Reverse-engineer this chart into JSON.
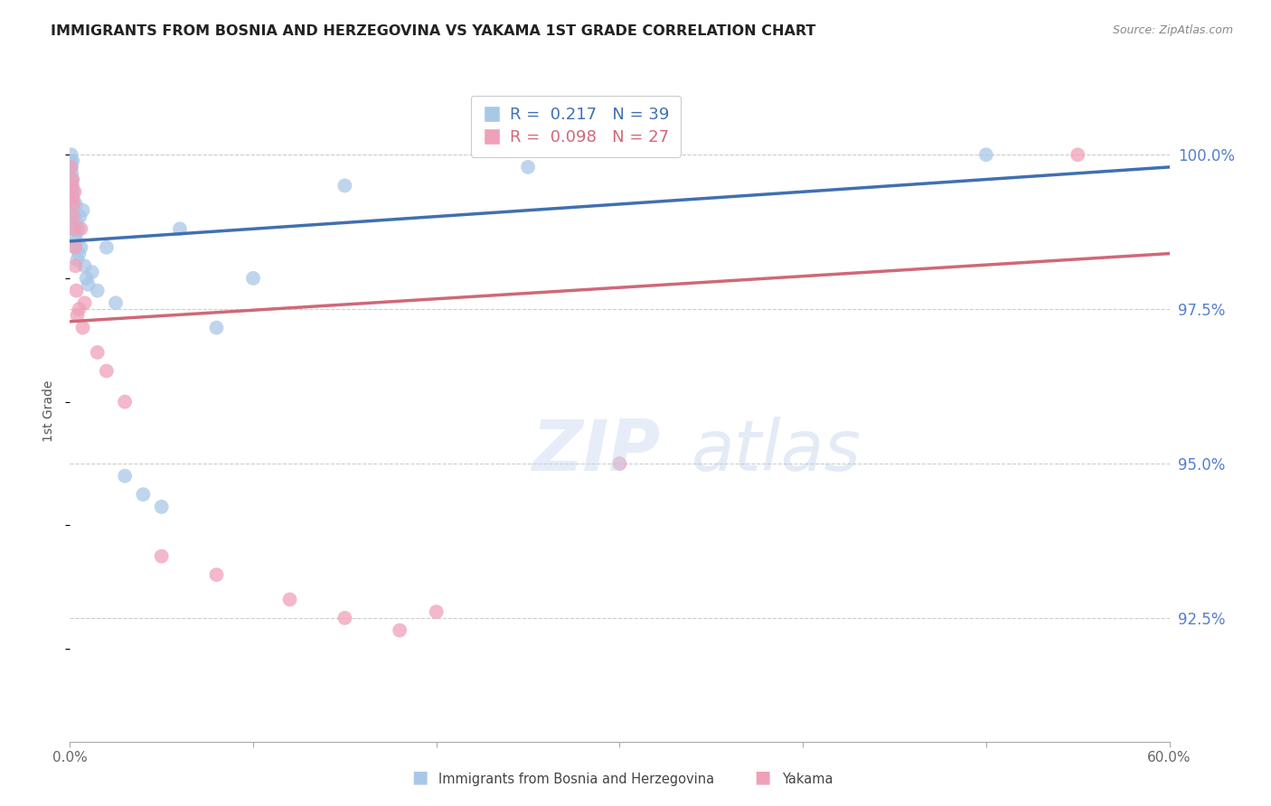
{
  "title": "IMMIGRANTS FROM BOSNIA AND HERZEGOVINA VS YAKAMA 1ST GRADE CORRELATION CHART",
  "source": "Source: ZipAtlas.com",
  "ylabel": "1st Grade",
  "right_yticks": [
    92.5,
    95.0,
    97.5,
    100.0
  ],
  "xlim": [
    0.0,
    60.0
  ],
  "ylim": [
    90.5,
    101.2
  ],
  "blue_R": 0.217,
  "blue_N": 39,
  "pink_R": 0.098,
  "pink_N": 27,
  "blue_color": "#a8c8e8",
  "pink_color": "#f0a0b8",
  "blue_line_color": "#4070b0",
  "pink_line_color": "#d06878",
  "legend_blue_label": "Immigrants from Bosnia and Herzegovina",
  "legend_pink_label": "Yakama",
  "blue_x": [
    0.05,
    0.07,
    0.08,
    0.1,
    0.12,
    0.13,
    0.15,
    0.17,
    0.18,
    0.2,
    0.22,
    0.25,
    0.28,
    0.3,
    0.32,
    0.35,
    0.38,
    0.4,
    0.45,
    0.5,
    0.55,
    0.6,
    0.7,
    0.8,
    0.9,
    1.0,
    1.2,
    1.5,
    2.0,
    2.5,
    3.0,
    4.0,
    5.0,
    6.0,
    8.0,
    10.0,
    15.0,
    25.0,
    50.0
  ],
  "blue_y": [
    99.9,
    100.0,
    99.8,
    99.7,
    99.6,
    99.5,
    99.9,
    99.3,
    99.4,
    99.1,
    98.8,
    99.0,
    98.7,
    98.5,
    99.2,
    98.9,
    98.6,
    98.3,
    98.8,
    98.4,
    99.0,
    98.5,
    99.1,
    98.2,
    98.0,
    97.9,
    98.1,
    97.8,
    98.5,
    97.6,
    94.8,
    94.5,
    94.3,
    98.8,
    97.2,
    98.0,
    99.5,
    99.8,
    100.0
  ],
  "pink_x": [
    0.05,
    0.1,
    0.12,
    0.15,
    0.18,
    0.2,
    0.22,
    0.25,
    0.28,
    0.3,
    0.35,
    0.4,
    0.5,
    0.6,
    0.7,
    0.8,
    1.5,
    2.0,
    3.0,
    5.0,
    8.0,
    12.0,
    15.0,
    18.0,
    20.0,
    30.0,
    55.0
  ],
  "pink_y": [
    99.8,
    99.5,
    99.3,
    99.6,
    99.0,
    99.2,
    98.8,
    99.4,
    98.5,
    98.2,
    97.8,
    97.4,
    97.5,
    98.8,
    97.2,
    97.6,
    96.8,
    96.5,
    96.0,
    93.5,
    93.2,
    92.8,
    92.5,
    92.3,
    92.6,
    95.0,
    100.0
  ],
  "blue_trend": [
    98.6,
    99.8
  ],
  "pink_trend": [
    97.3,
    98.4
  ]
}
